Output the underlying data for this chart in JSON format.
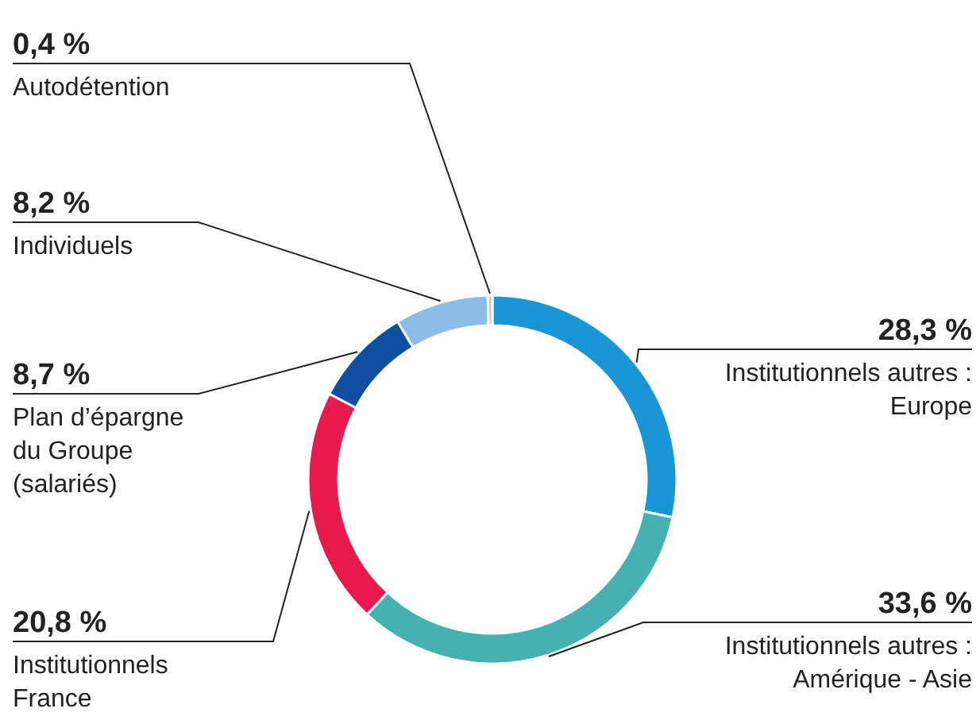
{
  "chart_data": {
    "type": "donut",
    "categories": [
      "Institutionnels autres :\nEurope",
      "Institutionnels autres :\nAmérique - Asie",
      "Institutionnels\nFrance",
      "Plan d’épargne\ndu Groupe\n(salariés)",
      "Individuels",
      "Autodétention"
    ],
    "values": [
      28.3,
      33.6,
      20.8,
      8.7,
      8.2,
      0.4
    ],
    "value_labels": [
      "28,3 %",
      "33,6 %",
      "20,8 %",
      "8,7 %",
      "8,2 %",
      "0,4 %"
    ],
    "colors": [
      "#1896d5",
      "#45b2b1",
      "#e8194b",
      "#0f4fa0",
      "#8cbde6",
      "#c8c8c8"
    ]
  }
}
